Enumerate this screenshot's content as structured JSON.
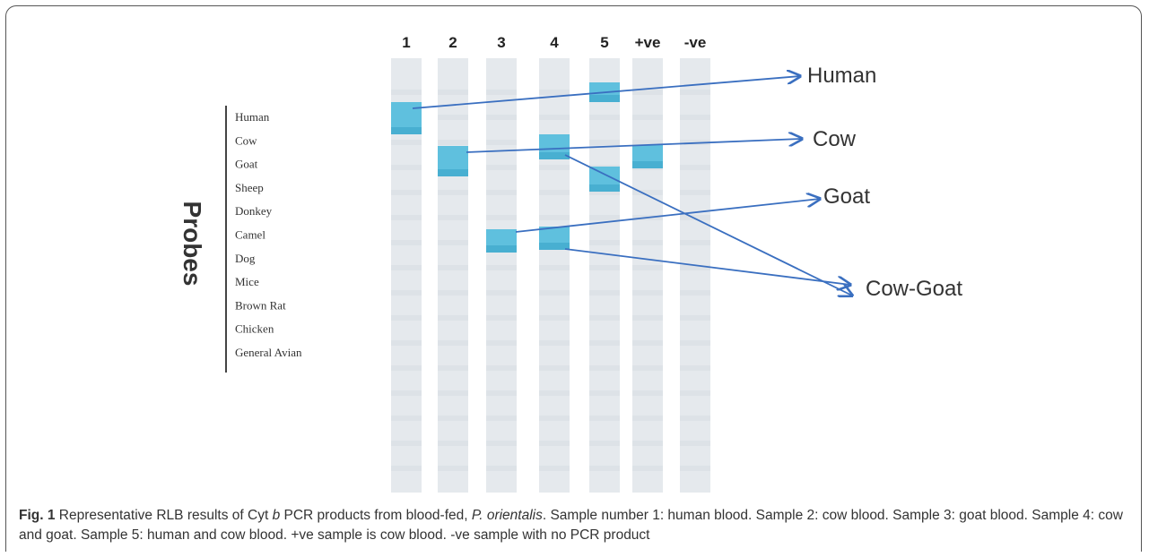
{
  "figure": {
    "lanes": [
      "1",
      "2",
      "3",
      "4",
      "5",
      "+ve",
      "-ve"
    ],
    "probes_title": "Probes",
    "probes": [
      "Human",
      "Cow",
      "Goat",
      "Sheep",
      "Donkey",
      "Camel",
      "Dog",
      "Mice",
      "Brown Rat",
      "Chicken",
      "General Avian"
    ],
    "targets": [
      "Human",
      "Cow",
      "Goat",
      "Cow-Goat"
    ]
  },
  "caption": {
    "label": "Fig. 1",
    "parts": [
      "Representative RLB results of Cyt",
      "b",
      "PCR products from blood-fed,",
      "P. orientalis",
      ". Sample number 1: human blood. Sample 2: cow blood. Sample 3: goat blood. Sample 4: cow and goat. Sample 5: human and cow blood. +ve sample is cow blood. -ve sample with no PCR product"
    ]
  }
}
